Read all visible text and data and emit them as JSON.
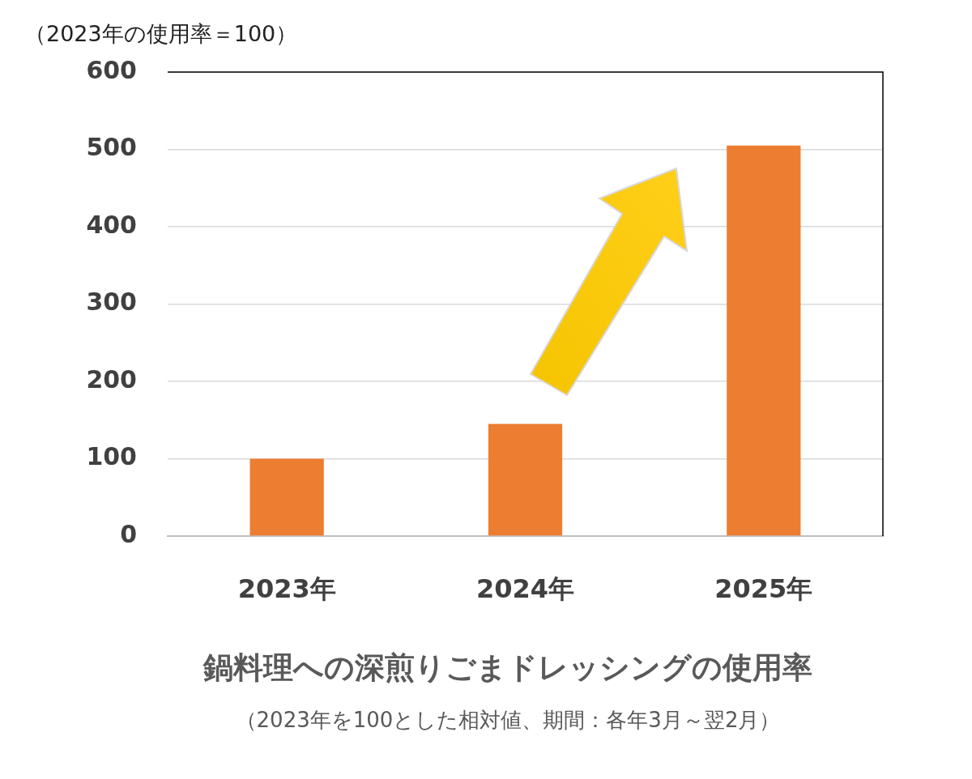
{
  "chart_data": {
    "type": "bar",
    "title": "鍋料理への深煎りごまドレッシングの使用率",
    "subtitle": "（2023年を100とした相対値、期間：各年3月～翌2月）",
    "ylabel": "（2023年の使用率＝100）",
    "categories": [
      "2023年",
      "2024年",
      "2025年"
    ],
    "values": [
      100,
      145,
      505
    ],
    "color": "#ed7d31",
    "ylim": [
      0,
      600
    ],
    "yticks": [
      0,
      100,
      200,
      300,
      400,
      500,
      600
    ],
    "grid": "y",
    "legend": false
  }
}
